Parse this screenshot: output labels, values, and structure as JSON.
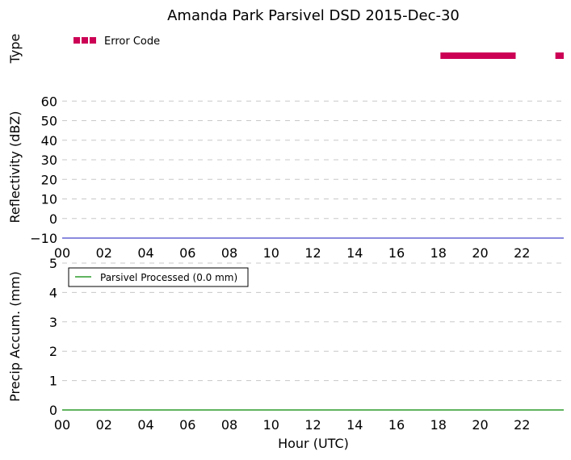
{
  "chart_data": [
    {
      "type": "event-bar",
      "title": "Amanda Park Parsivel DSD 2015-Dec-30",
      "ylabel": "Type",
      "xlim": [
        0,
        24
      ],
      "legend": {
        "label": "Error Code",
        "color": "#cc0055",
        "placement": "upper-left"
      },
      "series": [
        {
          "name": "Error Code",
          "color": "#cc0055",
          "intervals": [
            [
              18.1,
              21.7
            ],
            [
              23.6,
              24.0
            ]
          ]
        }
      ]
    },
    {
      "type": "line",
      "ylabel": "Reflectivity (dBZ)",
      "xlim": [
        0,
        24
      ],
      "ylim": [
        -10,
        63
      ],
      "yticks": [
        "60",
        "50",
        "40",
        "30",
        "20",
        "10",
        "0",
        "−10"
      ],
      "ytick_values": [
        60,
        50,
        40,
        30,
        20,
        10,
        0,
        -10
      ],
      "xticks": [
        "00",
        "02",
        "04",
        "06",
        "08",
        "10",
        "12",
        "14",
        "16",
        "18",
        "20",
        "22"
      ],
      "xtick_values": [
        0,
        2,
        4,
        6,
        8,
        10,
        12,
        14,
        16,
        18,
        20,
        22
      ],
      "grid": true,
      "series": [
        {
          "color": "#4444cc",
          "x": [
            0,
            24
          ],
          "y": [
            -10,
            -10
          ]
        }
      ]
    },
    {
      "type": "line",
      "ylabel": "Precip Accum. (mm)",
      "xlabel": "Hour (UTC)",
      "xlim": [
        0,
        24
      ],
      "ylim": [
        0,
        5
      ],
      "yticks": [
        "5",
        "4",
        "3",
        "2",
        "1",
        "0"
      ],
      "ytick_values": [
        5,
        4,
        3,
        2,
        1,
        0
      ],
      "xticks": [
        "00",
        "02",
        "04",
        "06",
        "08",
        "10",
        "12",
        "14",
        "16",
        "18",
        "20",
        "22"
      ],
      "xtick_values": [
        0,
        2,
        4,
        6,
        8,
        10,
        12,
        14,
        16,
        18,
        20,
        22
      ],
      "grid": true,
      "legend": {
        "label": "Parsivel Processed (0.0 mm)",
        "color": "#008800",
        "placement": "upper-left"
      },
      "series": [
        {
          "name": "Parsivel Processed (0.0 mm)",
          "color": "#008800",
          "x": [
            0,
            24
          ],
          "y": [
            0,
            0
          ]
        }
      ]
    }
  ]
}
